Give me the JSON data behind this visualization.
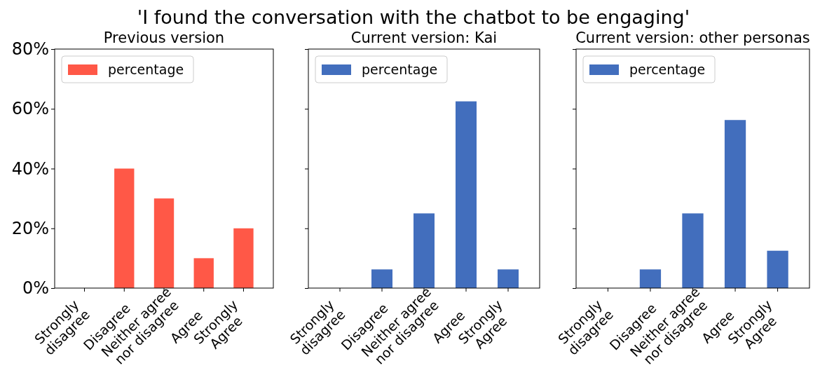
{
  "chart_data": [
    {
      "type": "bar",
      "title": "Previous version",
      "annotations": [
        "'I found the conversation with the chatbot to be engaging'"
      ],
      "categories": [
        "Strongly\ndisagree",
        "Disagree",
        "Neither agree\nnor disagree",
        "Agree",
        "Strongly\nAgree"
      ],
      "series": [
        {
          "name": "percentage",
          "color": "#ff5847",
          "values": [
            0,
            40,
            30,
            10,
            20
          ]
        }
      ],
      "ylim": [
        0,
        80
      ],
      "yticks": [
        {
          "value": 0,
          "label": "0%"
        },
        {
          "value": 20,
          "label": "20%"
        },
        {
          "value": 40,
          "label": "40%"
        },
        {
          "value": 60,
          "label": "60%"
        },
        {
          "value": 80,
          "label": "80%"
        }
      ],
      "legend": "top left",
      "grid": false
    },
    {
      "type": "bar",
      "title": "Current version: Kai",
      "categories": [
        "Strongly\ndisagree",
        "Disagree",
        "Neither agree\nnor disagree",
        "Agree",
        "Strongly\nAgree"
      ],
      "series": [
        {
          "name": "percentage",
          "color": "#426ebd",
          "values": [
            0,
            6.25,
            25,
            62.5,
            6.25
          ]
        }
      ],
      "ylim": [
        0,
        80
      ],
      "yticks": [
        {
          "value": 0,
          "label": null
        },
        {
          "value": 20,
          "label": null
        },
        {
          "value": 40,
          "label": null
        },
        {
          "value": 60,
          "label": null
        },
        {
          "value": 80,
          "label": null
        }
      ],
      "legend": "top left",
      "grid": false,
      "tick_labels": "x"
    },
    {
      "type": "bar",
      "title": "Current version: other personas",
      "categories": [
        "Strongly\ndisagree",
        "Disagree",
        "Neither agree\nnor disagree",
        "Agree",
        "Strongly\nAgree"
      ],
      "series": [
        {
          "name": "percentage",
          "color": "#426ebd",
          "values": [
            0,
            6.25,
            25,
            56.25,
            12.5
          ]
        }
      ],
      "ylim": [
        0,
        80
      ],
      "yticks": [
        {
          "value": 0,
          "label": null
        },
        {
          "value": 20,
          "label": null
        },
        {
          "value": 40,
          "label": null
        },
        {
          "value": 60,
          "label": null
        },
        {
          "value": 80,
          "label": null
        }
      ],
      "legend": "top left",
      "grid": false,
      "tick_labels": "x"
    }
  ]
}
